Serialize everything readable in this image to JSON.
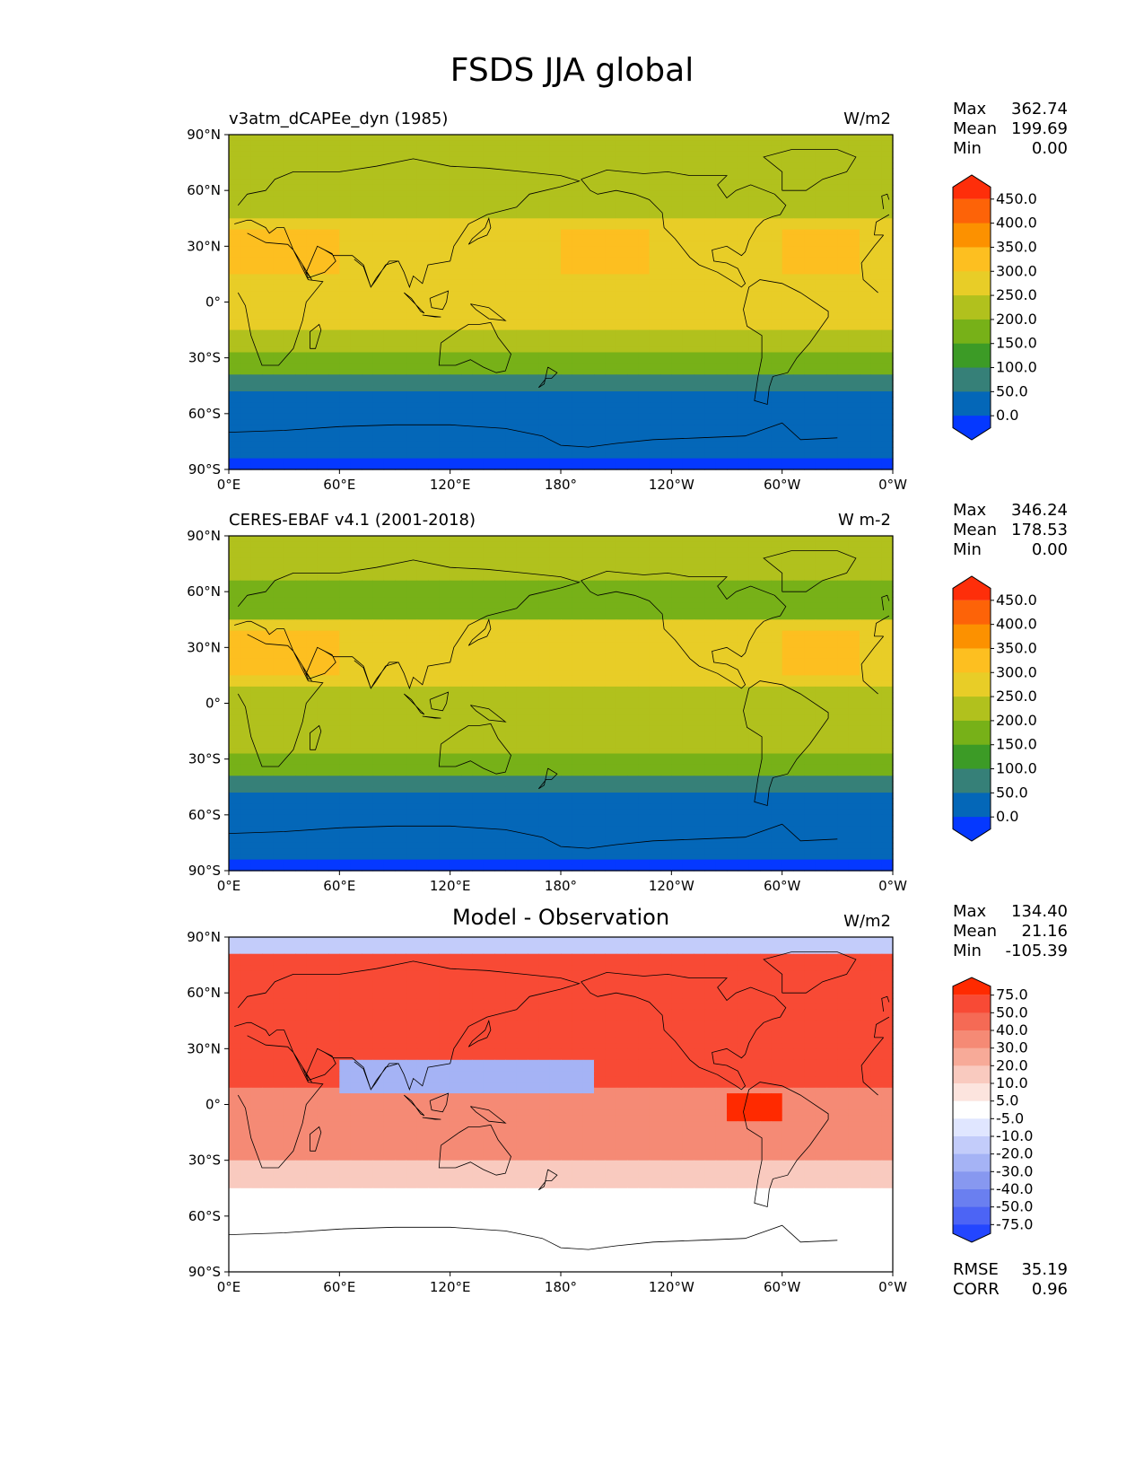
{
  "title": "FSDS JJA global",
  "panels": [
    {
      "id": "model",
      "title_left": "v3atm_dCAPEe_dyn (1985)",
      "title_center": "",
      "units": "W/m2",
      "stats": [
        [
          "Max",
          "362.74"
        ],
        [
          "Mean",
          "199.69"
        ],
        [
          "Min",
          "0.00"
        ]
      ],
      "colorbar_labels": [
        "450.0",
        "400.0",
        "350.0",
        "300.0",
        "250.0",
        "200.0",
        "150.0",
        "100.0",
        "50.0",
        "0.0"
      ],
      "colorbar_colors": [
        "#fe2e0a",
        "#fd6308",
        "#fc9100",
        "#fdbf20",
        "#e8cd27",
        "#b1c11d",
        "#77b118",
        "#3c9b26",
        "#368078",
        "#0467b8",
        "#0538ff"
      ],
      "extra_stats": []
    },
    {
      "id": "obs",
      "title_left": "CERES-EBAF v4.1 (2001-2018)",
      "title_center": "",
      "units": "W m-2",
      "stats": [
        [
          "Max",
          "346.24"
        ],
        [
          "Mean",
          "178.53"
        ],
        [
          "Min",
          "0.00"
        ]
      ],
      "colorbar_labels": [
        "450.0",
        "400.0",
        "350.0",
        "300.0",
        "250.0",
        "200.0",
        "150.0",
        "100.0",
        "50.0",
        "0.0"
      ],
      "colorbar_colors": [
        "#fe2e0a",
        "#fd6308",
        "#fc9100",
        "#fdbf20",
        "#e8cd27",
        "#b1c11d",
        "#77b118",
        "#3c9b26",
        "#368078",
        "#0467b8",
        "#0538ff"
      ],
      "extra_stats": []
    },
    {
      "id": "diff",
      "title_left": "",
      "title_center": "Model - Observation",
      "units": "W/m2",
      "stats": [
        [
          "Max",
          "134.40"
        ],
        [
          "Mean",
          "21.16"
        ],
        [
          "Min",
          "-105.39"
        ]
      ],
      "colorbar_labels": [
        "75.0",
        "50.0",
        "40.0",
        "30.0",
        "20.0",
        "10.0",
        "5.0",
        "-5.0",
        "-10.0",
        "-20.0",
        "-30.0",
        "-40.0",
        "-50.0",
        "-75.0"
      ],
      "colorbar_colors": [
        "#ff2a00",
        "#f84a35",
        "#f56a55",
        "#f58a75",
        "#f7aa98",
        "#f9cabf",
        "#fce4de",
        "#ffffff",
        "#e0e6ff",
        "#c3ccfa",
        "#a5b3f5",
        "#8798f0",
        "#6a7ff0",
        "#4c64f5",
        "#2346ff"
      ],
      "extra_stats": [
        [
          "RMSE",
          "35.19"
        ],
        [
          "CORR",
          "0.96"
        ]
      ]
    }
  ],
  "lat_labels": [
    "90°N",
    "60°N",
    "30°N",
    "0°",
    "30°S",
    "60°S",
    "90°S"
  ],
  "lon_labels": [
    "0°E",
    "60°E",
    "120°E",
    "180°",
    "120°W",
    "60°W",
    "0°W"
  ]
}
